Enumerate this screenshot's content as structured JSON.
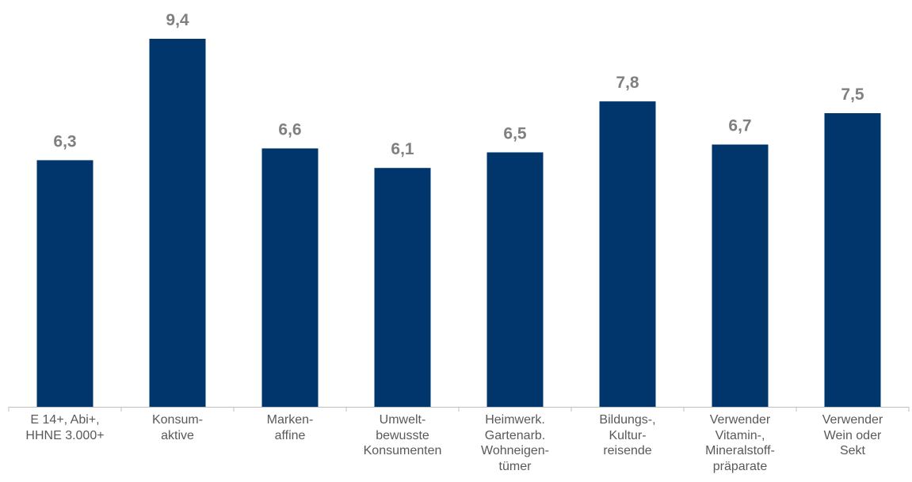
{
  "chart_data": {
    "type": "bar",
    "categories": [
      [
        "E 14+, Abi+,",
        "HHNE 3.000+"
      ],
      [
        "Konsum-",
        "aktive"
      ],
      [
        "Marken-",
        "affine"
      ],
      [
        "Umwelt-",
        "bewusste",
        "Konsumenten"
      ],
      [
        "Heimwerk.",
        "Gartenarb.",
        "Wohneigen-",
        "tümer"
      ],
      [
        "Bildungs-,",
        "Kultur-",
        "reisende"
      ],
      [
        "Verwender",
        "Vitamin-,",
        "Mineralstoff-",
        "präparate"
      ],
      [
        "Verwender",
        "Wein oder",
        "Sekt"
      ]
    ],
    "values": [
      6.3,
      9.4,
      6.6,
      6.1,
      6.5,
      7.8,
      6.7,
      7.5
    ],
    "value_labels": [
      "6,3",
      "9,4",
      "6,6",
      "6,1",
      "6,5",
      "7,8",
      "6,7",
      "7,5"
    ],
    "ylim": [
      0,
      10
    ],
    "grid": false,
    "colors": {
      "bar": "#00366b",
      "value_label": "#808080",
      "axis": "#bfbfbf",
      "category_label": "#595959"
    }
  }
}
